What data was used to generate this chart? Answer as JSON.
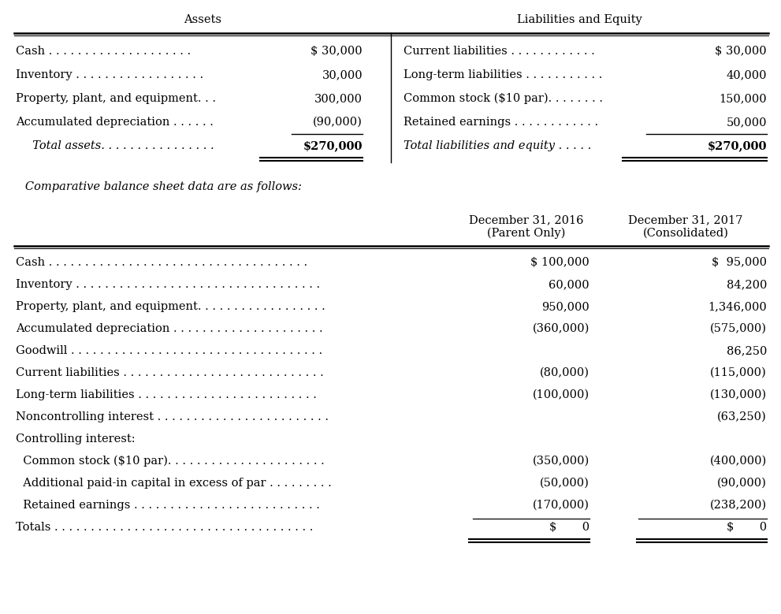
{
  "bg_color": "#ffffff",
  "fig_w": 9.91,
  "fig_h": 7.79,
  "dpi": 100,
  "s1": {
    "header_left": "Assets",
    "header_right": "Liabilities and Equity",
    "rows_left": [
      [
        "Cash . . . . . . . . . . . . . . . . . . . .",
        "$ 30,000"
      ],
      [
        "Inventory . . . . . . . . . . . . . . . . . .",
        "30,000"
      ],
      [
        "Property, plant, and equipment. . .",
        "300,000"
      ],
      [
        "Accumulated depreciation . . . . . .",
        "(90,000)"
      ]
    ],
    "total_left_label": "  Total assets. . . . . . . . . . . . . . . .",
    "total_left_value": "$270,000",
    "rows_right": [
      [
        "Current liabilities . . . . . . . . . . . .",
        "$ 30,000"
      ],
      [
        "Long-term liabilities . . . . . . . . . . .",
        "40,000"
      ],
      [
        "Common stock ($10 par). . . . . . . .",
        "150,000"
      ],
      [
        "Retained earnings . . . . . . . . . . . .",
        "50,000"
      ]
    ],
    "total_right_label": "Total liabilities and equity . . . . .",
    "total_right_value": "$270,000"
  },
  "comparative_label": "   Comparative balance sheet data are as follows:",
  "s2": {
    "col1_h1": "December 31, 2016",
    "col1_h2": "(Parent Only)",
    "col2_h1": "December 31, 2017",
    "col2_h2": "(Consolidated)",
    "rows": [
      {
        "label": "Cash . . . . . . . . . . . . . . . . . . . . . . . . . . . . . . . . . . . .",
        "indent": 0,
        "col1": "$ 100,000",
        "col2": "$  95,000",
        "underline_before": false,
        "is_total": false
      },
      {
        "label": "Inventory . . . . . . . . . . . . . . . . . . . . . . . . . . . . . . . . . .",
        "indent": 0,
        "col1": "60,000",
        "col2": "84,200",
        "underline_before": false,
        "is_total": false
      },
      {
        "label": "Property, plant, and equipment. . . . . . . . . . . . . . . . . .",
        "indent": 0,
        "col1": "950,000",
        "col2": "1,346,000",
        "underline_before": false,
        "is_total": false
      },
      {
        "label": "Accumulated depreciation . . . . . . . . . . . . . . . . . . . . .",
        "indent": 0,
        "col1": "(360,000)",
        "col2": "(575,000)",
        "underline_before": false,
        "is_total": false
      },
      {
        "label": "Goodwill . . . . . . . . . . . . . . . . . . . . . . . . . . . . . . . . . . .",
        "indent": 0,
        "col1": "",
        "col2": "86,250",
        "underline_before": false,
        "is_total": false
      },
      {
        "label": "Current liabilities . . . . . . . . . . . . . . . . . . . . . . . . . . . .",
        "indent": 0,
        "col1": "(80,000)",
        "col2": "(115,000)",
        "underline_before": false,
        "is_total": false
      },
      {
        "label": "Long-term liabilities . . . . . . . . . . . . . . . . . . . . . . . . .",
        "indent": 0,
        "col1": "(100,000)",
        "col2": "(130,000)",
        "underline_before": false,
        "is_total": false
      },
      {
        "label": "Noncontrolling interest . . . . . . . . . . . . . . . . . . . . . . . .",
        "indent": 0,
        "col1": "",
        "col2": "(63,250)",
        "underline_before": false,
        "is_total": false
      },
      {
        "label": "Controlling interest:",
        "indent": 0,
        "col1": "",
        "col2": "",
        "underline_before": false,
        "is_total": false
      },
      {
        "label": "  Common stock ($10 par). . . . . . . . . . . . . . . . . . . . . .",
        "indent": 1,
        "col1": "(350,000)",
        "col2": "(400,000)",
        "underline_before": false,
        "is_total": false
      },
      {
        "label": "  Additional paid-in capital in excess of par . . . . . . . . .",
        "indent": 1,
        "col1": "(50,000)",
        "col2": "(90,000)",
        "underline_before": false,
        "is_total": false
      },
      {
        "label": "  Retained earnings . . . . . . . . . . . . . . . . . . . . . . . . . .",
        "indent": 1,
        "col1": "(170,000)",
        "col2": "(238,200)",
        "underline_before": false,
        "is_total": false
      },
      {
        "label": "Totals . . . . . . . . . . . . . . . . . . . . . . . . . . . . . . . . . . . .",
        "indent": 0,
        "col1": "$       0",
        "col2": "$       0",
        "underline_before": true,
        "is_total": true
      }
    ]
  }
}
